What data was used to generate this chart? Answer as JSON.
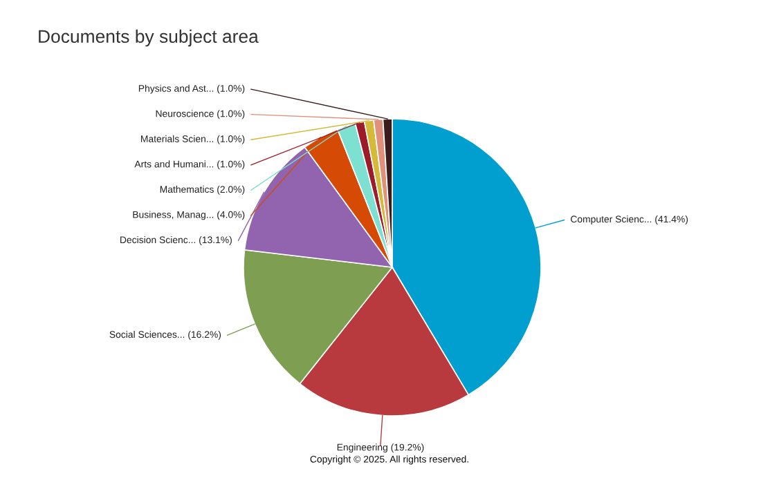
{
  "chart_data": {
    "type": "pie",
    "title": "Documents by subject area",
    "categories": [
      "Computer Scienc...",
      "Engineering",
      "Social Sciences...",
      "Decision Scienc...",
      "Business, Manag...",
      "Mathematics",
      "Arts and Humani...",
      "Materials Scien...",
      "Neuroscience",
      "Physics and Ast..."
    ],
    "values": [
      41.4,
      19.2,
      16.2,
      13.1,
      4.0,
      2.0,
      1.0,
      1.0,
      1.0,
      1.0
    ],
    "value_labels": [
      "(41.4%)",
      "(19.2%)",
      "(16.2%)",
      "(13.1%)",
      "(4.0%)",
      "(2.0%)",
      "(1.0%)",
      "(1.0%)",
      "(1.0%)",
      "(1.0%)"
    ],
    "colors": [
      "#009fd0",
      "#b83a3f",
      "#7e9f51",
      "#9263ae",
      "#d54a05",
      "#7ee0d0",
      "#9b1c2b",
      "#d5b93b",
      "#e0917b",
      "#3a1c1c"
    ],
    "annotations": [
      "Copyright © 2025. All rights reserved."
    ]
  }
}
